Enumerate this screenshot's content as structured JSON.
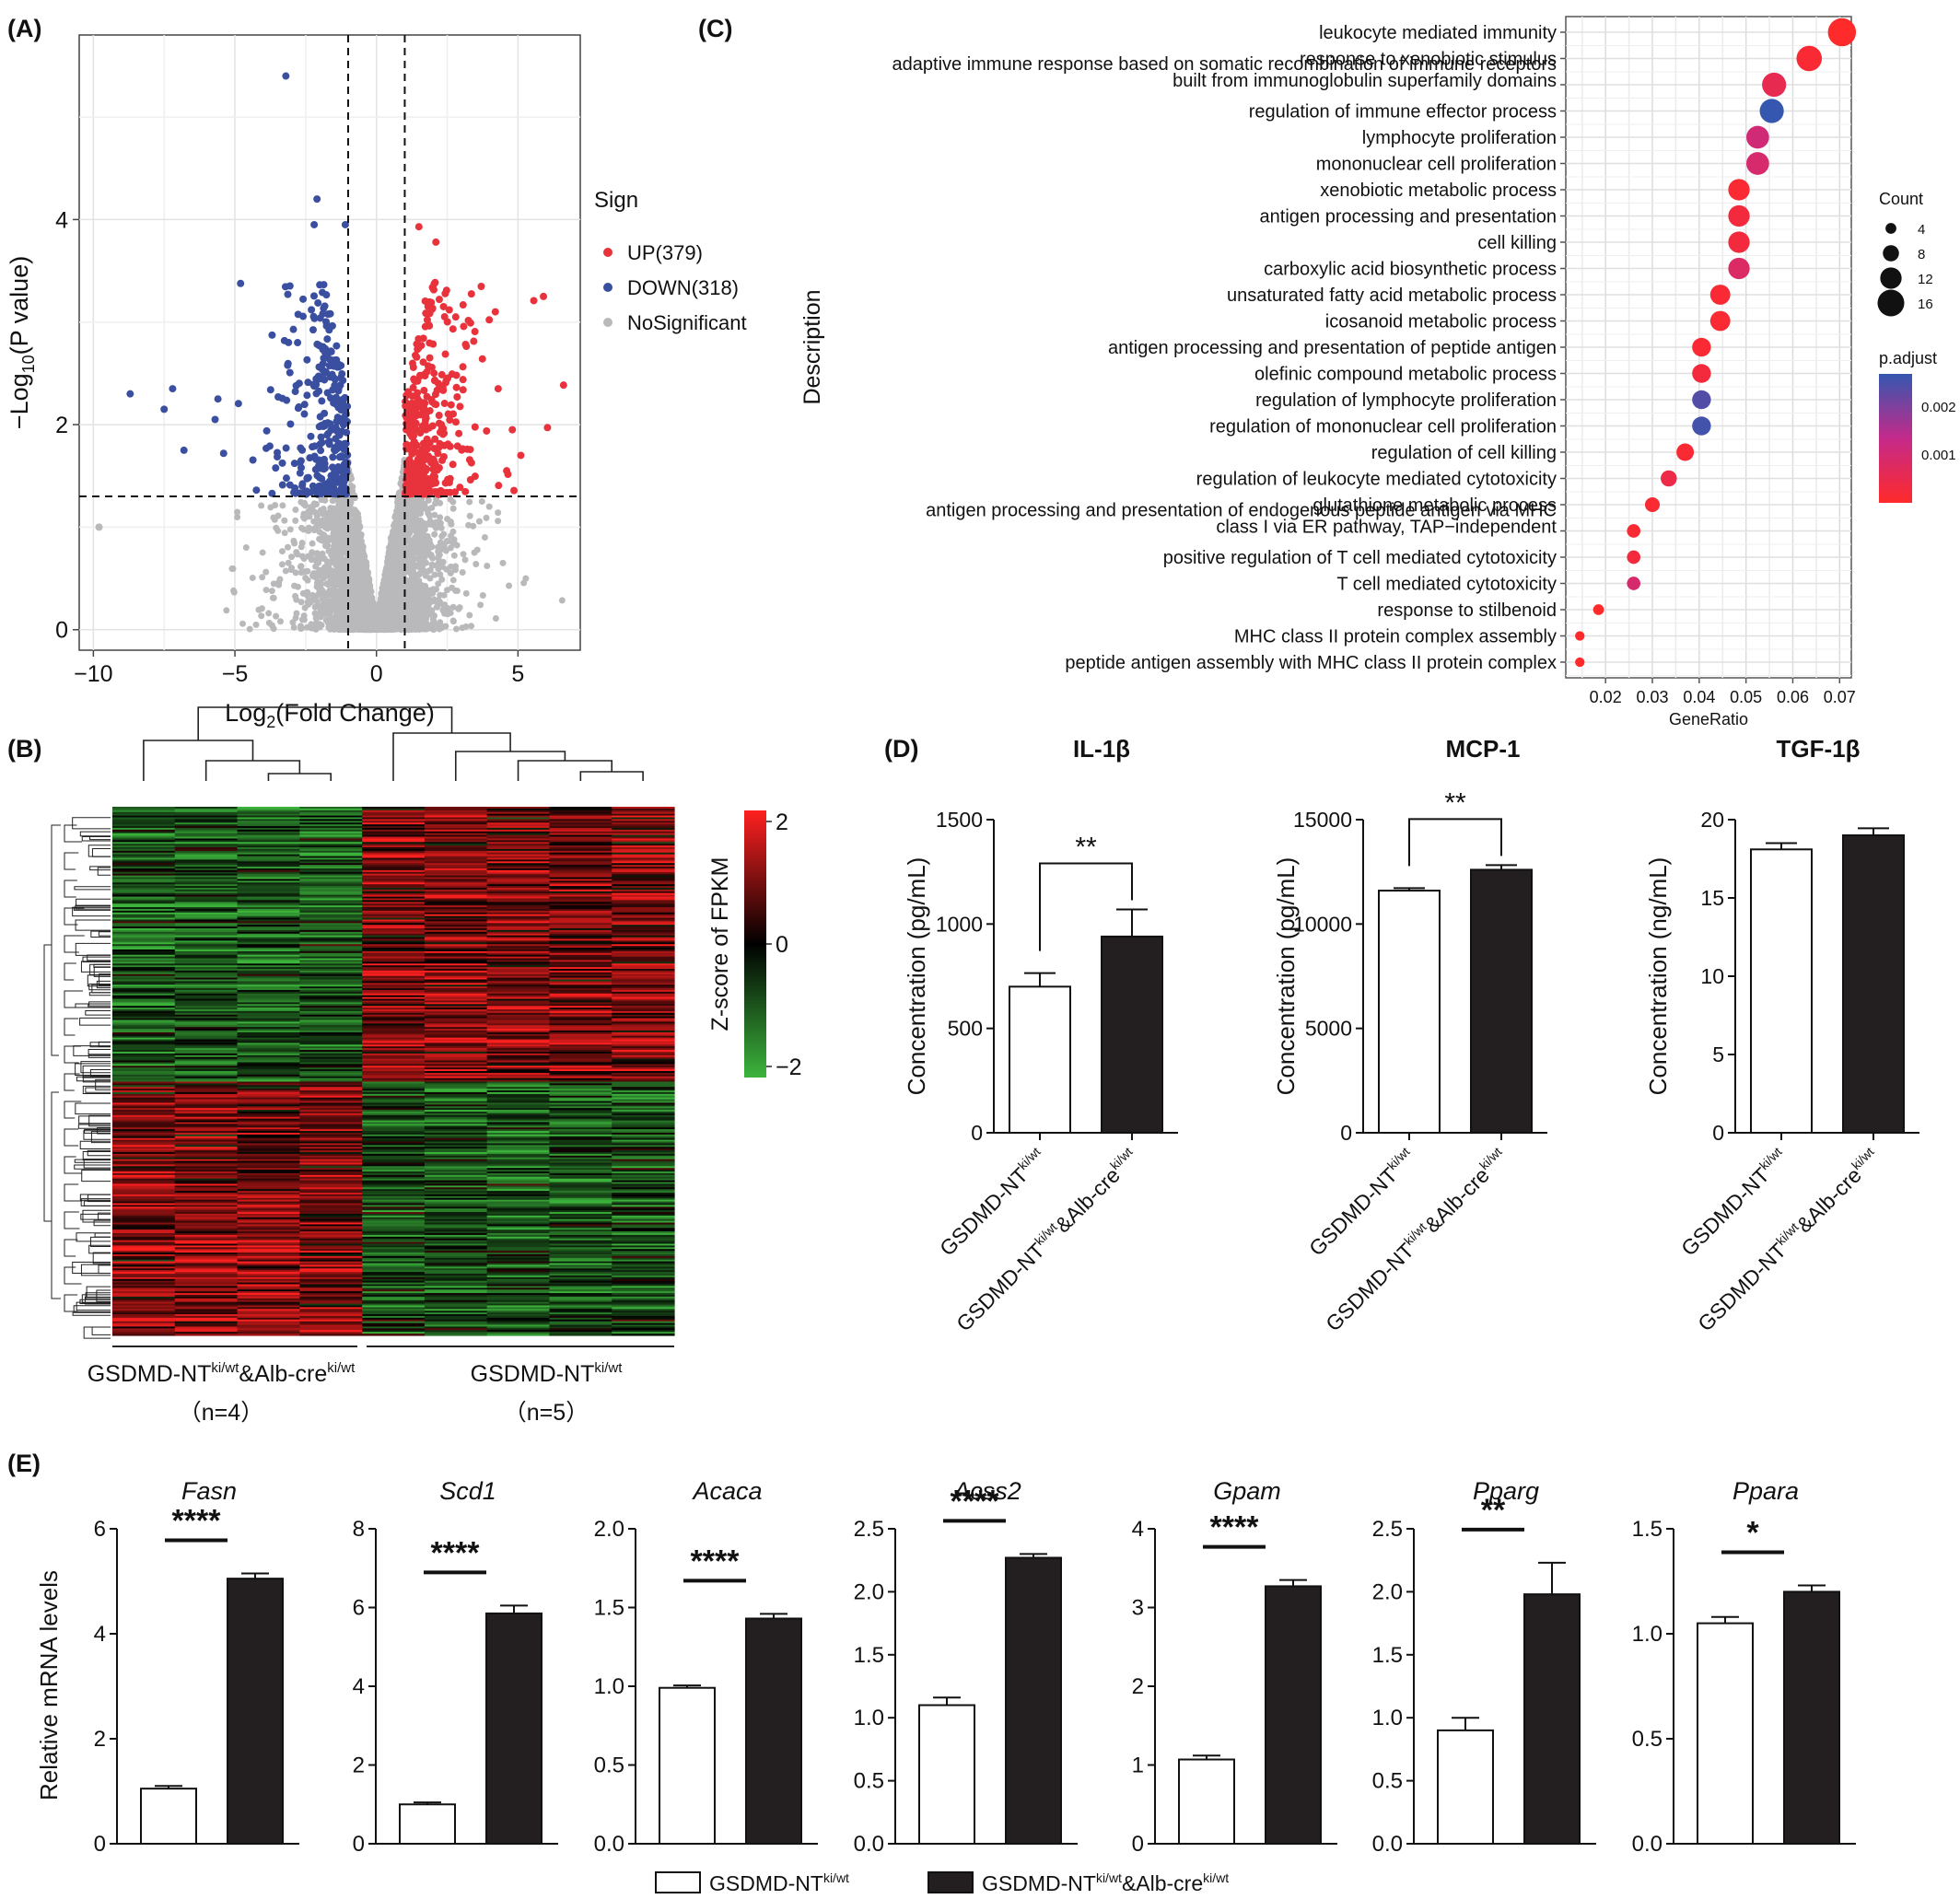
{
  "panels": {
    "A": {
      "letter": "(A)"
    },
    "B": {
      "letter": "(B)"
    },
    "C": {
      "letter": "(C)"
    },
    "D": {
      "letter": "(D)"
    },
    "E": {
      "letter": "(E)"
    }
  },
  "colors": {
    "up": "#e8323c",
    "down": "#3b4fa0",
    "ns": "#b9b9bb",
    "heat_high": "#ff2020",
    "heat_mid": "#000000",
    "heat_low": "#3cb43c",
    "padj_low": "#ff2a2a",
    "padj_mid": "#c42a8a",
    "padj_high": "#3557b0",
    "bar_dark": "#231f20",
    "bar_light": "#ffffff"
  },
  "chart_data": [
    {
      "panel": "A",
      "type": "scatter",
      "xlabel": "Log2(Fold Change)",
      "ylabel": "-Log10(P value)",
      "xlim": [
        -10.5,
        7.2
      ],
      "ylim": [
        -0.2,
        5.8
      ],
      "xticks": [
        "-10",
        "-5",
        "0",
        "5"
      ],
      "yticks": [
        "0",
        "2",
        "4"
      ],
      "thresholds": {
        "x": [
          -1,
          1
        ],
        "y": 1.3
      },
      "legend": {
        "title": "Sign",
        "entries": [
          {
            "label": "UP(379)",
            "color": "#e8323c"
          },
          {
            "label": "DOWN(318)",
            "color": "#3b4fa0"
          },
          {
            "label": "NoSignificant",
            "color": "#b9b9bb"
          }
        ]
      },
      "series": [
        {
          "name": "UP(379)",
          "count": 379
        },
        {
          "name": "DOWN(318)",
          "count": 318
        },
        {
          "name": "NoSignificant"
        }
      ],
      "highlight_points": [
        {
          "x": -3.2,
          "y": 5.4,
          "group": "down"
        },
        {
          "x": -2.1,
          "y": 4.2,
          "group": "down"
        },
        {
          "x": -2.2,
          "y": 3.95,
          "group": "down"
        },
        {
          "x": -1.1,
          "y": 3.95,
          "group": "down"
        },
        {
          "x": -8.7,
          "y": 2.3,
          "group": "down"
        },
        {
          "x": -7.2,
          "y": 2.35,
          "group": "down"
        },
        {
          "x": -7.5,
          "y": 2.15,
          "group": "down"
        },
        {
          "x": -5.6,
          "y": 2.25,
          "group": "down"
        },
        {
          "x": -6.8,
          "y": 1.75,
          "group": "down"
        },
        {
          "x": -5.4,
          "y": 1.72,
          "group": "down"
        },
        {
          "x": -5.7,
          "y": 2.05,
          "group": "down"
        },
        {
          "x": 1.5,
          "y": 3.93,
          "group": "up"
        },
        {
          "x": 2.1,
          "y": 3.78,
          "group": "up"
        },
        {
          "x": 5.9,
          "y": 3.25,
          "group": "up"
        },
        {
          "x": 4.2,
          "y": 3.1,
          "group": "up"
        },
        {
          "x": 2.8,
          "y": 3.05,
          "group": "up"
        },
        {
          "x": 4.3,
          "y": 2.35,
          "group": "up"
        },
        {
          "x": 4.8,
          "y": 1.95,
          "group": "up"
        },
        {
          "x": 5.1,
          "y": 1.7,
          "group": "up"
        },
        {
          "x": 4.6,
          "y": 1.55,
          "group": "up"
        },
        {
          "x": -9.8,
          "y": 1.0,
          "group": "ns"
        }
      ]
    },
    {
      "panel": "B",
      "type": "heatmap",
      "legend_title": "Z-score of FPKM",
      "scale_ticks": [
        "2",
        "0",
        "−2"
      ],
      "groups": [
        {
          "label": "GSDMD-NT",
          "sup": "ki/wt",
          "label2": "&Alb-cre",
          "sup2": "ki/wt",
          "n": "（n=4）",
          "columns": 4
        },
        {
          "label": "GSDMD-NT",
          "sup": "ki/wt",
          "label2": "",
          "sup2": "",
          "n": "（n=5）",
          "columns": 5
        }
      ]
    },
    {
      "panel": "C",
      "type": "scatter",
      "xlabel": "GeneRatio",
      "ylabel": "Description",
      "xlim": [
        0.0115,
        0.0725
      ],
      "xticks": [
        "0.02",
        "0.03",
        "0.04",
        "0.05",
        "0.06",
        "0.07"
      ],
      "size_legend": {
        "title": "Count",
        "values": [
          "4",
          "8",
          "12",
          "16"
        ]
      },
      "color_legend": {
        "title": "p.adjust",
        "ticks": [
          "0.002",
          "0.001"
        ]
      },
      "terms": [
        {
          "label": "leukocyte mediated immunity",
          "ratio": 0.0705,
          "count": 17,
          "padj": 0.0004
        },
        {
          "label": "response to xenobiotic stimulus",
          "ratio": 0.0635,
          "count": 15,
          "padj": 0.0005
        },
        {
          "label": "adaptive immune response based on somatic recombination of immune receptors",
          "label2": "built from immunoglobulin superfamily domains",
          "ratio": 0.056,
          "count": 14,
          "padj": 0.0008
        },
        {
          "label": "regulation of immune effector process",
          "ratio": 0.0555,
          "count": 14,
          "padj": 0.0024
        },
        {
          "label": "lymphocyte proliferation",
          "ratio": 0.0525,
          "count": 13,
          "padj": 0.0012
        },
        {
          "label": "mononuclear cell proliferation",
          "ratio": 0.0525,
          "count": 13,
          "padj": 0.0011
        },
        {
          "label": "xenobiotic metabolic process",
          "ratio": 0.0485,
          "count": 12,
          "padj": 0.0005
        },
        {
          "label": "antigen processing and presentation",
          "ratio": 0.0485,
          "count": 12,
          "padj": 0.0006
        },
        {
          "label": "cell killing",
          "ratio": 0.0485,
          "count": 12,
          "padj": 0.0006
        },
        {
          "label": "carboxylic acid biosynthetic process",
          "ratio": 0.0485,
          "count": 12,
          "padj": 0.001
        },
        {
          "label": "unsaturated fatty acid metabolic process",
          "ratio": 0.0445,
          "count": 11,
          "padj": 0.0005
        },
        {
          "label": "icosanoid metabolic process",
          "ratio": 0.0445,
          "count": 11,
          "padj": 0.0005
        },
        {
          "label": "antigen processing and presentation of peptide antigen",
          "ratio": 0.0405,
          "count": 10,
          "padj": 0.0005
        },
        {
          "label": "olefinic compound metabolic process",
          "ratio": 0.0405,
          "count": 10,
          "padj": 0.0006
        },
        {
          "label": "regulation of lymphocyte proliferation",
          "ratio": 0.0405,
          "count": 10,
          "padj": 0.0022
        },
        {
          "label": "regulation of mononuclear cell proliferation",
          "ratio": 0.0405,
          "count": 10,
          "padj": 0.0023
        },
        {
          "label": "regulation of cell killing",
          "ratio": 0.037,
          "count": 9,
          "padj": 0.0005
        },
        {
          "label": "regulation of leukocyte mediated cytotoxicity",
          "ratio": 0.0335,
          "count": 8,
          "padj": 0.0007
        },
        {
          "label": "glutathione metabolic process",
          "ratio": 0.03,
          "count": 7,
          "padj": 0.0005
        },
        {
          "label": "antigen processing and presentation of endogenous peptide antigen via MHC",
          "label2": "class I via ER pathway, TAP−independent",
          "ratio": 0.026,
          "count": 6,
          "padj": 0.0005
        },
        {
          "label": "positive regulation of T cell mediated cytotoxicity",
          "ratio": 0.026,
          "count": 6,
          "padj": 0.0006
        },
        {
          "label": "T cell mediated cytotoxicity",
          "ratio": 0.026,
          "count": 6,
          "padj": 0.0011
        },
        {
          "label": "response to stilbenoid",
          "ratio": 0.0185,
          "count": 4,
          "padj": 0.0004
        },
        {
          "label": "MHC class II protein complex assembly",
          "ratio": 0.0145,
          "count": 3,
          "padj": 0.0004
        },
        {
          "label": "peptide antigen assembly with MHC class II protein complex",
          "ratio": 0.0145,
          "count": 3,
          "padj": 0.0004
        }
      ]
    },
    {
      "panel": "D",
      "type": "bar",
      "categories": [
        {
          "base": "GSDMD-NT",
          "sup": "ki/wt",
          "tail": "",
          "tail_sup": ""
        },
        {
          "base": "GSDMD-NT",
          "sup": "ki/wt",
          "tail": "&Alb-cre",
          "tail_sup": "ki/wt"
        }
      ],
      "subplots": [
        {
          "title": "IL-1β",
          "ylabel": "Concentration (pg/mL)",
          "ylim": [
            0,
            1500
          ],
          "yticks": [
            "0",
            "500",
            "1000",
            "1500"
          ],
          "values": [
            700,
            940
          ],
          "errors": [
            65,
            130
          ],
          "sig": "**"
        },
        {
          "title": "MCP-1",
          "ylabel": "Concentration (pg/mL)",
          "ylim": [
            0,
            15000
          ],
          "yticks": [
            "0",
            "5000",
            "10000",
            "15000"
          ],
          "values": [
            11600,
            12600
          ],
          "errors": [
            120,
            220
          ],
          "sig": "**"
        },
        {
          "title": "TGF-1β",
          "ylabel": "Concentration (ng/mL)",
          "ylim": [
            0,
            20
          ],
          "yticks": [
            "0",
            "5",
            "10",
            "15",
            "20"
          ],
          "values": [
            18.1,
            19.0
          ],
          "errors": [
            0.4,
            0.45
          ],
          "sig": ""
        }
      ]
    },
    {
      "panel": "E",
      "type": "bar",
      "ylabel": "Relative mRNA levels",
      "legend": [
        {
          "base": "GSDMD-NT",
          "sup": "ki/wt",
          "tail": "",
          "tail_sup": "",
          "color": "#ffffff"
        },
        {
          "base": "GSDMD-NT",
          "sup": "ki/wt",
          "tail": "&Alb-cre",
          "tail_sup": "ki/wt",
          "color": "#231f20"
        }
      ],
      "subplots": [
        {
          "title": "Fasn",
          "ylim": [
            0,
            6
          ],
          "yticks": [
            "0",
            "2",
            "4",
            "6"
          ],
          "values": [
            1.05,
            5.05
          ],
          "errors": [
            0.05,
            0.1
          ],
          "sig": "****"
        },
        {
          "title": "Scd1",
          "ylim": [
            0,
            8
          ],
          "yticks": [
            "0",
            "2",
            "4",
            "6",
            "8"
          ],
          "values": [
            1.0,
            5.85
          ],
          "errors": [
            0.05,
            0.2
          ],
          "sig": "****"
        },
        {
          "title": "Acaca",
          "ylim": [
            0,
            2
          ],
          "yticks": [
            "0.0",
            "0.5",
            "1.0",
            "1.5",
            "2.0"
          ],
          "values": [
            0.99,
            1.43
          ],
          "errors": [
            0.015,
            0.03
          ],
          "sig": "****"
        },
        {
          "title": "Acss2",
          "ylim": [
            0,
            2.5
          ],
          "yticks": [
            "0.0",
            "0.5",
            "1.0",
            "1.5",
            "2.0",
            "2.5"
          ],
          "values": [
            1.1,
            2.27
          ],
          "errors": [
            0.06,
            0.03
          ],
          "sig": "****"
        },
        {
          "title": "Gpam",
          "ylim": [
            0,
            4
          ],
          "yticks": [
            "0",
            "1",
            "2",
            "3",
            "4"
          ],
          "values": [
            1.07,
            3.27
          ],
          "errors": [
            0.05,
            0.08
          ],
          "sig": "****"
        },
        {
          "title": "Pparg",
          "ylim": [
            0,
            2.5
          ],
          "yticks": [
            "0.0",
            "0.5",
            "1.0",
            "1.5",
            "2.0",
            "2.5"
          ],
          "values": [
            0.9,
            1.98
          ],
          "errors": [
            0.1,
            0.25
          ],
          "sig": "**"
        },
        {
          "title": "Ppara",
          "ylim": [
            0,
            1.5
          ],
          "yticks": [
            "0.0",
            "0.5",
            "1.0",
            "1.5"
          ],
          "values": [
            1.05,
            1.2
          ],
          "errors": [
            0.03,
            0.03
          ],
          "sig": "*"
        }
      ]
    }
  ]
}
